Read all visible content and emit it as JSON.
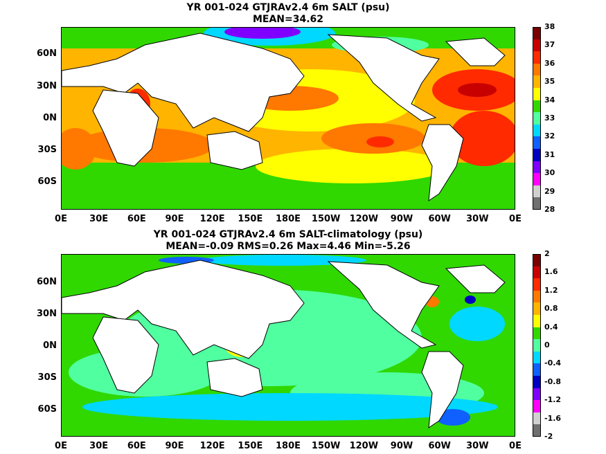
{
  "top": {
    "title_line1": "YR 001-024 GTJRAv2.4 6m SALT (psu)",
    "title_line2": "MEAN=34.62",
    "colorbar_labels": [
      "38",
      "37",
      "36",
      "35",
      "34",
      "33",
      "32",
      "31",
      "30",
      "29",
      "28"
    ],
    "colorbar_colors": [
      "#7a0000",
      "#c80000",
      "#ff2a00",
      "#ff7800",
      "#ffb400",
      "#ffff00",
      "#30d800",
      "#50ffa0",
      "#00d8ff",
      "#1060ff",
      "#0000c0",
      "#8000ff",
      "#ff00ff",
      "#d0d0d0",
      "#707070"
    ]
  },
  "bottom": {
    "title_line1": "YR 001-024 GTJRAv2.4 6m SALT-climatology (psu)",
    "title_line2": "MEAN=-0.09   RMS=0.26   Max=4.46   Min=-5.26",
    "colorbar_labels": [
      "2",
      "1.6",
      "1.2",
      "0.8",
      "0.4",
      "0",
      "-0.4",
      "-0.8",
      "-1.2",
      "-1.6",
      "-2"
    ],
    "colorbar_colors": [
      "#7a0000",
      "#c80000",
      "#ff2a00",
      "#ff7800",
      "#ffb400",
      "#ffff00",
      "#30d800",
      "#50ffa0",
      "#00d8ff",
      "#1060ff",
      "#0000c0",
      "#8000ff",
      "#ff00ff",
      "#d0d0d0",
      "#707070"
    ]
  },
  "axes": {
    "lat_labels": [
      "60N",
      "30N",
      "0N",
      "30S",
      "60S"
    ],
    "lon_labels": [
      "0E",
      "30E",
      "60E",
      "90E",
      "120E",
      "150E",
      "180E",
      "150W",
      "120W",
      "90W",
      "60W",
      "30W",
      "0E"
    ]
  }
}
